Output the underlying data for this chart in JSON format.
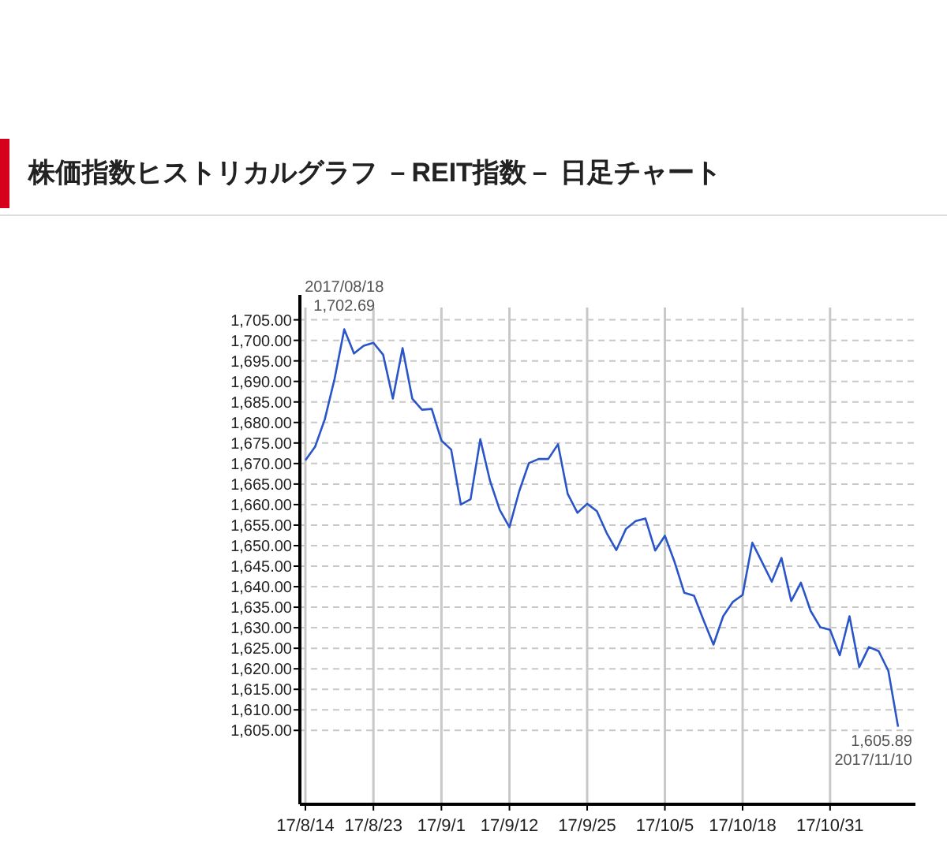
{
  "chart_data": {
    "type": "line",
    "title": "株価指数ヒストリカルグラフ －REIT指数－ 日足チャート",
    "categories": [
      "17/8/14",
      null,
      null,
      null,
      null,
      null,
      null,
      "17/8/23",
      null,
      null,
      null,
      null,
      null,
      null,
      "17/9/1",
      null,
      null,
      null,
      null,
      null,
      null,
      "17/9/12",
      null,
      null,
      null,
      null,
      null,
      null,
      null,
      "17/9/25",
      null,
      null,
      null,
      null,
      null,
      null,
      null,
      "17/10/5",
      null,
      null,
      null,
      null,
      null,
      null,
      null,
      "17/10/18",
      null,
      null,
      null,
      null,
      null,
      null,
      null,
      null,
      "17/10/31",
      null,
      null,
      null,
      null,
      null,
      null,
      null
    ],
    "series": [
      {
        "color": "#2a55c8",
        "values": [
          1670.8,
          1674.1,
          1680.8,
          1690.6,
          1702.69,
          1696.8,
          1698.7,
          1699.4,
          1696.5,
          1685.8,
          1698.1,
          1685.8,
          1683.1,
          1683.3,
          1675.6,
          1673.4,
          1660.0,
          1661.3,
          1675.9,
          1665.8,
          1658.7,
          1654.5,
          1663.2,
          1670.1,
          1671.1,
          1671.1,
          1674.7,
          1662.6,
          1658.0,
          1660.2,
          1658.4,
          1653.1,
          1648.9,
          1654.1,
          1656.0,
          1656.6,
          1648.8,
          1652.4,
          1646.0,
          1638.5,
          1637.8,
          1631.7,
          1625.9,
          1632.8,
          1636.3,
          1638.0,
          1650.7,
          1646.0,
          1641.2,
          1647.0,
          1636.5,
          1641.0,
          1634.1,
          1630.1,
          1629.5,
          1623.3,
          1632.8,
          1620.4,
          1625.3,
          1624.3,
          1619.5,
          1605.89
        ]
      }
    ],
    "ylim": [
      1587,
      1708
    ],
    "yticks": [
      {
        "value": 1605,
        "label": "1,605.00"
      },
      {
        "value": 1610,
        "label": "1,610.00"
      },
      {
        "value": 1615,
        "label": "1,615.00"
      },
      {
        "value": 1620,
        "label": "1,620.00"
      },
      {
        "value": 1625,
        "label": "1,625.00"
      },
      {
        "value": 1630,
        "label": "1,630.00"
      },
      {
        "value": 1635,
        "label": "1,635.00"
      },
      {
        "value": 1640,
        "label": "1,640.00"
      },
      {
        "value": 1645,
        "label": "1,645.00"
      },
      {
        "value": 1650,
        "label": "1,650.00"
      },
      {
        "value": 1655,
        "label": "1,655.00"
      },
      {
        "value": 1660,
        "label": "1,660.00"
      },
      {
        "value": 1665,
        "label": "1,665.00"
      },
      {
        "value": 1670,
        "label": "1,670.00"
      },
      {
        "value": 1675,
        "label": "1,675.00"
      },
      {
        "value": 1680,
        "label": "1,680.00"
      },
      {
        "value": 1685,
        "label": "1,685.00"
      },
      {
        "value": 1690,
        "label": "1,690.00"
      },
      {
        "value": 1695,
        "label": "1,695.00"
      },
      {
        "value": 1700,
        "label": "1,700.00"
      },
      {
        "value": 1705,
        "label": "1,705.00"
      }
    ],
    "grid": true,
    "annotations": [
      "2017/08/18",
      "1,702.69",
      "1,605.89",
      "2017/11/10"
    ]
  }
}
